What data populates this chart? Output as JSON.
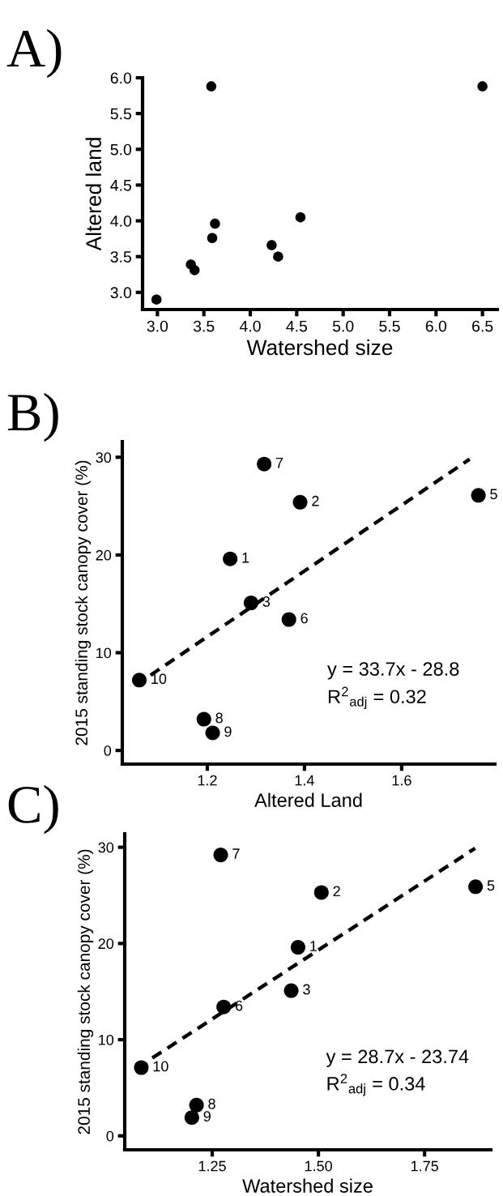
{
  "chart_data": [
    {
      "type": "scatter",
      "title": "A)",
      "xlabel": "Watershed size",
      "ylabel": "Altered land",
      "marker": "circle",
      "grid": false,
      "xlim": [
        2.84,
        6.66
      ],
      "ylim": [
        2.76,
        6.0
      ],
      "xticks": [
        {
          "value": 3,
          "label": "3.0"
        },
        3.5,
        {
          "value": 4,
          "label": "4.0"
        },
        4.5,
        {
          "value": 5,
          "label": "5.0"
        },
        5.5,
        {
          "value": 6,
          "label": "6.0"
        },
        6.5
      ],
      "yticks": [
        {
          "value": 3,
          "label": "3.0"
        },
        3.5,
        {
          "value": 4,
          "label": "4.0"
        },
        4.5,
        {
          "value": 5,
          "label": "5.0"
        },
        5.5,
        {
          "value": 6,
          "label": "6.0"
        }
      ],
      "series": [
        {
          "color": "#000000",
          "x": [
            2.99,
            3.36,
            3.4,
            3.58,
            3.59,
            3.62,
            4.23,
            4.3,
            4.54,
            6.5
          ],
          "values": [
            2.9,
            3.39,
            3.31,
            5.88,
            3.76,
            3.96,
            3.66,
            3.5,
            4.05,
            5.88
          ]
        }
      ]
    },
    {
      "type": "scatter",
      "title": "B)",
      "xlabel": "Altered Land",
      "ylabel": "2015 standing stock canopy cover (%)",
      "marker": "circle",
      "grid": false,
      "xlim": [
        1.025,
        1.792
      ],
      "ylim": [
        -1.4,
        31.6
      ],
      "xticks": [
        1.2,
        1.4,
        1.6
      ],
      "yticks": [
        0,
        10,
        20,
        30
      ],
      "series": [
        {
          "color": "#000000",
          "x": [
            1.247,
            1.391,
            1.29,
            1.758,
            1.368,
            1.317,
            1.193,
            1.211,
            1.06
          ],
          "values": [
            19.6,
            25.4,
            15.1,
            26.1,
            13.4,
            29.3,
            3.2,
            1.8,
            7.2
          ]
        },
        {
          "type": "line",
          "color": "#000000",
          "line_style": "dashed",
          "marker": "none",
          "x": [
            1.083,
            1.74
          ],
          "values": [
            7.7,
            29.8
          ]
        }
      ],
      "annotations": [
        {
          "text": "1",
          "x": 1.247,
          "y": 19.6
        },
        {
          "text": "2",
          "x": 1.391,
          "y": 25.4
        },
        {
          "text": "3",
          "x": 1.29,
          "y": 15.1
        },
        {
          "text": "5",
          "x": 1.758,
          "y": 26.1
        },
        {
          "text": "6",
          "x": 1.368,
          "y": 13.4
        },
        {
          "text": "7",
          "x": 1.317,
          "y": 29.3
        },
        {
          "text": "8",
          "x": 1.193,
          "y": 3.2
        },
        {
          "text": "9",
          "x": 1.211,
          "y": 1.8
        },
        {
          "text": "10",
          "x": 1.06,
          "y": 7.2
        },
        "y = 33.7x - 28.8",
        "R$^{2}$$_{adj}$ = 0.32"
      ]
    },
    {
      "type": "scatter",
      "title": "C)",
      "xlabel": "Watershed size",
      "ylabel": "2015 standing stock canopy cover (%)",
      "marker": "circle",
      "grid": false,
      "xlim": [
        1.044,
        1.906
      ],
      "ylim": [
        -1.45,
        31.4
      ],
      "xticks": [
        1.25,
        {
          "value": 1.5,
          "label": "1.50"
        },
        1.75
      ],
      "yticks": [
        0,
        10,
        20,
        30
      ],
      "series": [
        {
          "color": "#000000",
          "x": [
            1.452,
            1.507,
            1.436,
            1.87,
            1.277,
            1.27,
            1.213,
            1.202,
            1.083
          ],
          "values": [
            19.6,
            25.3,
            15.1,
            25.9,
            13.4,
            29.2,
            3.2,
            1.9,
            7.1
          ]
        },
        {
          "type": "line",
          "color": "#000000",
          "line_style": "dashed",
          "marker": "none",
          "x": [
            1.109,
            1.869
          ],
          "values": [
            8.1,
            29.9
          ]
        }
      ],
      "annotations": [
        {
          "text": "1",
          "x": 1.452,
          "y": 19.6
        },
        {
          "text": "2",
          "x": 1.507,
          "y": 25.3
        },
        {
          "text": "3",
          "x": 1.436,
          "y": 15.1
        },
        {
          "text": "5",
          "x": 1.87,
          "y": 25.9
        },
        {
          "text": "6",
          "x": 1.277,
          "y": 13.4
        },
        {
          "text": "7",
          "x": 1.27,
          "y": 29.2
        },
        {
          "text": "8",
          "x": 1.213,
          "y": 3.2
        },
        {
          "text": "9",
          "x": 1.202,
          "y": 1.9
        },
        {
          "text": "10",
          "x": 1.083,
          "y": 7.1
        },
        "y = 28.7x - 23.74",
        "R$^{2}$$_{adj}$ = 0.34"
      ]
    }
  ]
}
